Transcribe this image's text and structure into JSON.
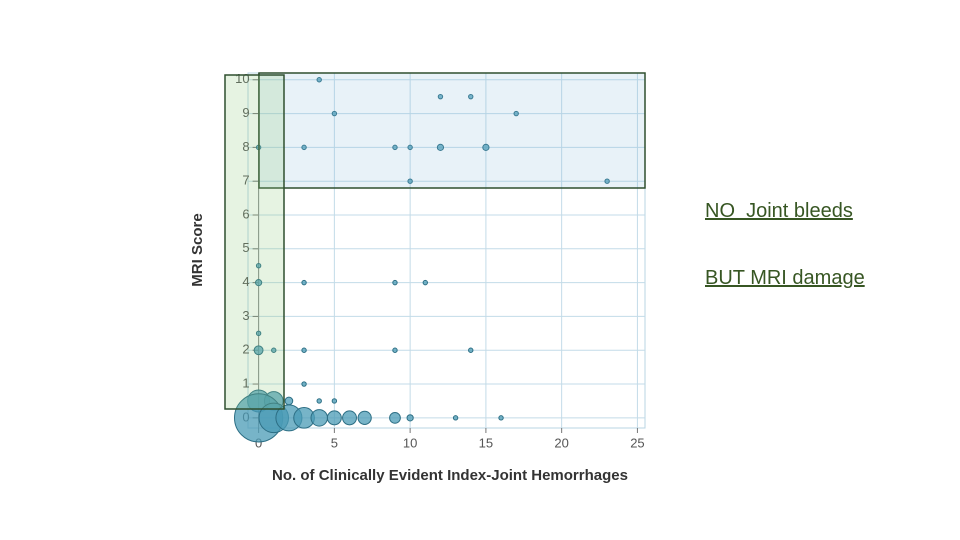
{
  "chart_data": {
    "type": "bubble",
    "x_label": "No. of Clinically Evident Index-Joint Hemorrhages",
    "y_label": "MRI Score",
    "annotations": [
      "NO  Joint bleeds",
      "BUT MRI damage"
    ],
    "x": [
      4,
      12,
      14,
      5,
      17,
      0,
      3,
      9,
      10,
      12,
      15,
      10,
      23,
      0,
      0,
      3,
      9,
      11,
      0,
      0,
      1,
      3,
      9,
      14,
      3,
      0,
      1,
      2,
      4,
      5,
      0,
      1,
      2,
      3,
      4,
      5,
      6,
      7,
      9,
      10,
      13,
      16
    ],
    "values": [
      10,
      9.5,
      9.5,
      9,
      9,
      8,
      8,
      8,
      8,
      8,
      8,
      7,
      7,
      4.5,
      4,
      4,
      4,
      4,
      2.5,
      2,
      2,
      2,
      2,
      2,
      1,
      0.5,
      0.5,
      0.5,
      0.5,
      0.5,
      0,
      0,
      0,
      0,
      0,
      0,
      0,
      0,
      0,
      0,
      0,
      0
    ],
    "sizes": [
      1,
      1,
      1,
      1,
      1,
      1,
      1,
      1,
      1,
      2,
      2,
      1,
      1,
      1,
      2,
      1,
      1,
      1,
      1,
      4,
      1,
      1,
      1,
      1,
      1,
      25,
      18,
      3,
      1,
      1,
      120,
      45,
      35,
      22,
      14,
      10,
      10,
      9,
      6,
      2,
      1,
      1
    ],
    "color": "#4a9bb5",
    "xlim": [
      -0.7,
      25.5
    ],
    "ylim": [
      -0.3,
      10.2
    ],
    "xticks": [
      0,
      5,
      10,
      15,
      20,
      25
    ],
    "yticks": [
      0,
      1,
      2,
      3,
      4,
      5,
      6,
      7,
      8,
      9,
      10
    ],
    "grid": true
  }
}
